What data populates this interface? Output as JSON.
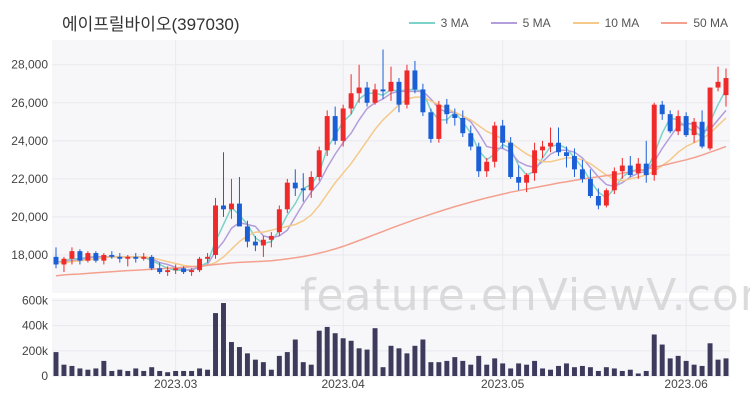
{
  "title": "에이프릴바이오(397030)",
  "watermark": "feature.enViewV.com",
  "colors": {
    "up": "#ee2a2a",
    "down": "#1a5fd6",
    "volume": "#3d3a5c",
    "grid": "#e9e9ee",
    "panel": "#f7f7fa"
  },
  "legend": [
    {
      "label": "3 MA",
      "color": "#7dd3c9"
    },
    {
      "label": "5 MA",
      "color": "#b39ddb"
    },
    {
      "label": "10 MA",
      "color": "#f5c98a"
    },
    {
      "label": "50 MA",
      "color": "#f4a08e"
    }
  ],
  "chart_data": {
    "type": "candlestick",
    "price_axis": {
      "ticks": [
        18000,
        20000,
        22000,
        24000,
        26000,
        28000
      ],
      "tick_labels": [
        "18,000",
        "20,000",
        "22,000",
        "24,000",
        "26,000",
        "28,000"
      ],
      "ylim": [
        16000,
        29300
      ]
    },
    "volume_axis": {
      "ticks": [
        0,
        200000,
        400000,
        600000
      ],
      "tick_labels": [
        "0",
        "200k",
        "400k",
        "600k"
      ],
      "ylim": [
        0,
        620000
      ]
    },
    "x_tick_labels": [
      {
        "label": "2023.03",
        "index": 15
      },
      {
        "label": "2023.04",
        "index": 36
      },
      {
        "label": "2023.05",
        "index": 56
      },
      {
        "label": "2023.06",
        "index": 79
      }
    ],
    "candles": [
      [
        17900,
        18400,
        17300,
        17500
      ],
      [
        17500,
        17900,
        17100,
        17800
      ],
      [
        17800,
        18400,
        17500,
        18200
      ],
      [
        18200,
        18300,
        17500,
        17700
      ],
      [
        17700,
        18200,
        17600,
        18100
      ],
      [
        18100,
        18200,
        17600,
        17700
      ],
      [
        17700,
        18100,
        17500,
        18000
      ],
      [
        18000,
        18200,
        17800,
        17900
      ],
      [
        17900,
        18100,
        17600,
        17800
      ],
      [
        17800,
        18000,
        17400,
        17900
      ],
      [
        17900,
        18100,
        17600,
        17800
      ],
      [
        17800,
        18100,
        17700,
        17900
      ],
      [
        17900,
        18000,
        17200,
        17300
      ],
      [
        17300,
        17600,
        17000,
        17100
      ],
      [
        17100,
        17400,
        16900,
        17200
      ],
      [
        17200,
        17500,
        17000,
        17300
      ],
      [
        17300,
        17400,
        17000,
        17100
      ],
      [
        17100,
        17300,
        16900,
        17200
      ],
      [
        17200,
        17900,
        17100,
        17800
      ],
      [
        17800,
        18100,
        17600,
        17900
      ],
      [
        18000,
        21000,
        17800,
        20600
      ],
      [
        20600,
        23400,
        20000,
        20400
      ],
      [
        20400,
        22000,
        19900,
        20700
      ],
      [
        20700,
        22100,
        19600,
        19500
      ],
      [
        19500,
        19800,
        18400,
        18700
      ],
      [
        18700,
        19000,
        18200,
        18500
      ],
      [
        18500,
        19000,
        17900,
        18800
      ],
      [
        18800,
        19200,
        18400,
        19000
      ],
      [
        19200,
        20600,
        19000,
        20400
      ],
      [
        20400,
        22000,
        20200,
        21800
      ],
      [
        21800,
        22500,
        21100,
        21500
      ],
      [
        21500,
        22300,
        20800,
        21400
      ],
      [
        21400,
        22400,
        21000,
        22100
      ],
      [
        22100,
        23700,
        21900,
        23500
      ],
      [
        23500,
        25600,
        23200,
        25300
      ],
      [
        25300,
        25800,
        23800,
        24000
      ],
      [
        24000,
        25900,
        23700,
        25700
      ],
      [
        25700,
        27500,
        25400,
        26500
      ],
      [
        26500,
        28000,
        26000,
        26800
      ],
      [
        26800,
        27100,
        25800,
        26000
      ],
      [
        26000,
        27000,
        25900,
        26700
      ],
      [
        26700,
        28800,
        26200,
        26600
      ],
      [
        26600,
        27900,
        26100,
        27100
      ],
      [
        27100,
        27300,
        25500,
        25900
      ],
      [
        25900,
        28000,
        25700,
        27700
      ],
      [
        27700,
        28200,
        26500,
        26700
      ],
      [
        26700,
        27000,
        25300,
        25500
      ],
      [
        25500,
        25700,
        23900,
        24100
      ],
      [
        24100,
        26100,
        23900,
        25900
      ],
      [
        25900,
        26200,
        24900,
        25400
      ],
      [
        25400,
        25700,
        24800,
        25200
      ],
      [
        25200,
        25600,
        24200,
        24400
      ],
      [
        24400,
        24800,
        23500,
        23700
      ],
      [
        23700,
        23900,
        22100,
        22400
      ],
      [
        22400,
        23100,
        22100,
        22900
      ],
      [
        22900,
        25000,
        22600,
        24800
      ],
      [
        24800,
        25100,
        23600,
        23900
      ],
      [
        23900,
        24200,
        22000,
        22100
      ],
      [
        22100,
        22700,
        21400,
        21800
      ],
      [
        21800,
        22300,
        21300,
        22200
      ],
      [
        22300,
        23900,
        21900,
        23500
      ],
      [
        23500,
        24000,
        23100,
        23700
      ],
      [
        23700,
        24700,
        23400,
        23900
      ],
      [
        23900,
        24700,
        23200,
        23400
      ],
      [
        23400,
        23700,
        22600,
        23200
      ],
      [
        23200,
        23600,
        22100,
        22500
      ],
      [
        22500,
        23000,
        21800,
        22000
      ],
      [
        22000,
        22500,
        21000,
        21100
      ],
      [
        21100,
        21500,
        20400,
        20600
      ],
      [
        20600,
        21500,
        20500,
        21400
      ],
      [
        21400,
        22600,
        21200,
        22400
      ],
      [
        22400,
        23100,
        22000,
        22700
      ],
      [
        22700,
        23200,
        22100,
        22200
      ],
      [
        22300,
        23100,
        22000,
        22800
      ],
      [
        22800,
        24000,
        21800,
        22200
      ],
      [
        22200,
        26000,
        21900,
        25900
      ],
      [
        25900,
        26100,
        25100,
        25400
      ],
      [
        25400,
        25600,
        24400,
        24500
      ],
      [
        24500,
        25600,
        24300,
        25300
      ],
      [
        25300,
        25500,
        24200,
        24300
      ],
      [
        24300,
        25200,
        23900,
        25000
      ],
      [
        25000,
        25600,
        23600,
        23700
      ],
      [
        23600,
        26800,
        23500,
        26800
      ],
      [
        26800,
        27900,
        26600,
        27100
      ],
      [
        26400,
        27800,
        25800,
        27300
      ]
    ],
    "volume": [
      190000,
      90000,
      80000,
      60000,
      50000,
      60000,
      120000,
      40000,
      50000,
      40000,
      60000,
      40000,
      70000,
      40000,
      30000,
      40000,
      40000,
      40000,
      60000,
      50000,
      500000,
      580000,
      270000,
      230000,
      180000,
      130000,
      110000,
      50000,
      160000,
      190000,
      290000,
      110000,
      90000,
      360000,
      390000,
      340000,
      300000,
      280000,
      220000,
      210000,
      380000,
      70000,
      240000,
      220000,
      180000,
      240000,
      290000,
      110000,
      110000,
      120000,
      150000,
      120000,
      90000,
      160000,
      90000,
      140000,
      100000,
      60000,
      100000,
      90000,
      120000,
      60000,
      50000,
      80000,
      100000,
      70000,
      80000,
      70000,
      40000,
      70000,
      60000,
      40000,
      50000,
      20000,
      40000,
      330000,
      250000,
      140000,
      160000,
      120000,
      90000,
      80000,
      260000,
      130000,
      140000
    ],
    "moving_averages": [
      {
        "period": 3,
        "values": [
          17600,
          17700,
          17800,
          17800,
          17900,
          17900,
          17900,
          17900,
          17900,
          17900,
          17900,
          17900,
          17700,
          17500,
          17300,
          17200,
          17200,
          17200,
          17400,
          17600,
          18700,
          19600,
          20500,
          20100,
          19600,
          18900,
          18600,
          18700,
          19300,
          20100,
          20700,
          21500,
          21700,
          22300,
          23600,
          24300,
          25000,
          25400,
          26200,
          26500,
          26500,
          26400,
          26700,
          26600,
          26700,
          26700,
          26600,
          25600,
          25100,
          25100,
          25500,
          25000,
          24400,
          23500,
          23000,
          23300,
          23800,
          23600,
          22700,
          22200,
          22400,
          23100,
          23700,
          23800,
          23600,
          23100,
          22600,
          21900,
          21300,
          21000,
          21500,
          22100,
          22400,
          22500,
          22400,
          23300,
          24400,
          25200,
          25100,
          24700,
          24500,
          24200,
          25000,
          25900,
          26700
        ]
      },
      {
        "period": 5,
        "values": [
          17600,
          17650,
          17700,
          17750,
          17850,
          17900,
          17900,
          17900,
          17900,
          17900,
          17900,
          17900,
          17800,
          17600,
          17500,
          17350,
          17200,
          17250,
          17350,
          17500,
          18200,
          18700,
          19400,
          19700,
          19600,
          19500,
          19000,
          18900,
          19000,
          19300,
          20000,
          20700,
          21300,
          21800,
          22600,
          23300,
          23900,
          24400,
          25100,
          25700,
          26000,
          26200,
          26500,
          26600,
          26600,
          26600,
          26600,
          26200,
          25700,
          25500,
          25500,
          25300,
          25000,
          24400,
          23700,
          23600,
          23600,
          23400,
          22900,
          22700,
          22600,
          22900,
          23300,
          23500,
          23500,
          23400,
          23100,
          22600,
          22100,
          21700,
          21600,
          21800,
          22100,
          22300,
          22400,
          22900,
          23600,
          24200,
          24800,
          24900,
          24900,
          24500,
          24600,
          25100,
          25600
        ]
      },
      {
        "period": 10,
        "values": [
          17600,
          17600,
          17650,
          17700,
          17750,
          17800,
          17850,
          17900,
          17900,
          17900,
          17900,
          17900,
          17850,
          17750,
          17650,
          17550,
          17450,
          17400,
          17400,
          17450,
          17600,
          17900,
          18300,
          18700,
          19000,
          19200,
          19200,
          19300,
          19400,
          19500,
          19600,
          19800,
          20100,
          20600,
          21200,
          21800,
          22300,
          22800,
          23400,
          24000,
          24600,
          25100,
          25500,
          25900,
          26200,
          26300,
          26300,
          26100,
          25900,
          25700,
          25500,
          25300,
          25100,
          24800,
          24500,
          24300,
          24100,
          23900,
          23600,
          23300,
          23100,
          22900,
          22900,
          23000,
          23100,
          23100,
          23000,
          22800,
          22500,
          22200,
          22000,
          21900,
          22000,
          22100,
          22200,
          22400,
          22700,
          23000,
          23400,
          23700,
          23900,
          24100,
          24400,
          24800,
          25200
        ]
      },
      {
        "period": 50,
        "values": [
          16900,
          16950,
          16980,
          17000,
          17030,
          17060,
          17090,
          17120,
          17150,
          17180,
          17200,
          17220,
          17250,
          17280,
          17300,
          17320,
          17350,
          17380,
          17410,
          17450,
          17500,
          17540,
          17580,
          17610,
          17630,
          17650,
          17670,
          17700,
          17740,
          17790,
          17850,
          17920,
          18000,
          18100,
          18200,
          18320,
          18450,
          18600,
          18760,
          18920,
          19080,
          19240,
          19400,
          19560,
          19710,
          19860,
          20000,
          20140,
          20280,
          20410,
          20540,
          20660,
          20780,
          20890,
          21000,
          21100,
          21200,
          21300,
          21380,
          21460,
          21540,
          21620,
          21700,
          21780,
          21850,
          21920,
          21990,
          22050,
          22110,
          22170,
          22230,
          22300,
          22370,
          22440,
          22510,
          22600,
          22700,
          22800,
          22900,
          23000,
          23120,
          23250,
          23400,
          23550,
          23700
        ]
      }
    ]
  }
}
